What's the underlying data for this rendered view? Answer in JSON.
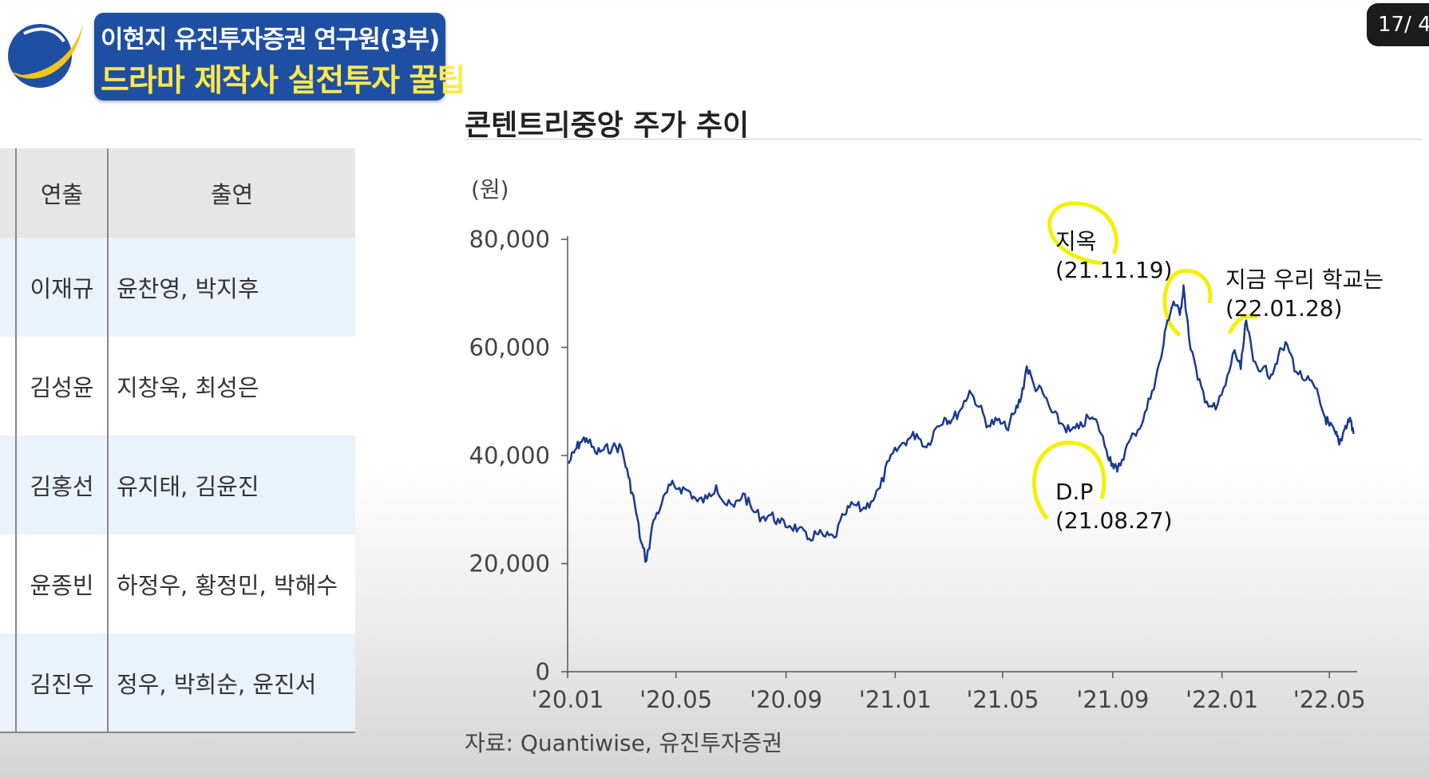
{
  "banner": {
    "line1": "이현지 유진투자증권 연구원(3부)",
    "line2": "드라마 제작사 실전투자 꿀팁",
    "bg_color": "#1f4fa3",
    "line2_color": "#ffe94a"
  },
  "logo": {
    "icon": "globe-swoosh-logo"
  },
  "page_counter": "17/ 4",
  "table": {
    "headers": [
      "",
      "연출",
      "출연"
    ],
    "rows": [
      {
        "director": "이재규",
        "cast": "윤찬영, 박지후"
      },
      {
        "director": "김성윤",
        "cast": "지창욱, 최성은"
      },
      {
        "director": "김홍선",
        "cast": "유지태, 김윤진"
      },
      {
        "director": "윤종빈",
        "cast": "하정우, 황정민, 박해수"
      },
      {
        "director": "김진우",
        "cast": "정우, 박희순, 윤진서"
      }
    ]
  },
  "chart_title": "콘텐트리중앙 주가 추이",
  "source": "자료: Quantiwise, 유진투자증권",
  "chart_data": {
    "type": "line",
    "title": "콘텐트리중앙 주가 추이",
    "ylabel": "(원)",
    "xlabel": "",
    "ylim": [
      0,
      80000
    ],
    "xlim": [
      "2020-01",
      "2022-06"
    ],
    "yticks": [
      0,
      20000,
      40000,
      60000,
      80000
    ],
    "ytick_labels": [
      "0",
      "20,000",
      "40,000",
      "60,000",
      "80,000"
    ],
    "xtick_labels": [
      "'20.01",
      "'20.05",
      "'20.09",
      "'21.01",
      "'21.05",
      "'21.09",
      "'22.01",
      "'22.05"
    ],
    "xticks": [
      "2020-01",
      "2020-05",
      "2020-09",
      "2021-01",
      "2021-05",
      "2021-09",
      "2022-01",
      "2022-05"
    ],
    "line_color": "#1a3a8f",
    "series": [
      {
        "points": [
          [
            "2020-01-02",
            38500
          ],
          [
            "2020-01-08",
            40500
          ],
          [
            "2020-01-15",
            42500
          ],
          [
            "2020-01-22",
            43200
          ],
          [
            "2020-02-01",
            40500
          ],
          [
            "2020-02-10",
            41000
          ],
          [
            "2020-02-20",
            41500
          ],
          [
            "2020-03-01",
            41500
          ],
          [
            "2020-03-09",
            36000
          ],
          [
            "2020-03-16",
            31000
          ],
          [
            "2020-03-23",
            24000
          ],
          [
            "2020-03-29",
            20500
          ],
          [
            "2020-04-06",
            28000
          ],
          [
            "2020-04-15",
            31000
          ],
          [
            "2020-04-25",
            34500
          ],
          [
            "2020-05-05",
            34000
          ],
          [
            "2020-05-15",
            33500
          ],
          [
            "2020-05-25",
            31500
          ],
          [
            "2020-06-05",
            32000
          ],
          [
            "2020-06-15",
            34500
          ],
          [
            "2020-06-25",
            31000
          ],
          [
            "2020-07-05",
            30500
          ],
          [
            "2020-07-15",
            33000
          ],
          [
            "2020-07-25",
            30000
          ],
          [
            "2020-08-05",
            28500
          ],
          [
            "2020-08-15",
            29000
          ],
          [
            "2020-08-25",
            27500
          ],
          [
            "2020-09-05",
            27000
          ],
          [
            "2020-09-15",
            26500
          ],
          [
            "2020-09-25",
            24500
          ],
          [
            "2020-10-05",
            25500
          ],
          [
            "2020-10-15",
            25000
          ],
          [
            "2020-10-25",
            24800
          ],
          [
            "2020-11-05",
            29000
          ],
          [
            "2020-11-15",
            31000
          ],
          [
            "2020-11-25",
            30000
          ],
          [
            "2020-12-05",
            31500
          ],
          [
            "2020-12-15",
            34000
          ],
          [
            "2020-12-25",
            39000
          ],
          [
            "2021-01-05",
            41500
          ],
          [
            "2021-01-15",
            43000
          ],
          [
            "2021-01-25",
            44000
          ],
          [
            "2021-02-05",
            41500
          ],
          [
            "2021-02-15",
            45000
          ],
          [
            "2021-02-25",
            47000
          ],
          [
            "2021-03-05",
            46500
          ],
          [
            "2021-03-15",
            48500
          ],
          [
            "2021-03-25",
            52000
          ],
          [
            "2021-04-05",
            49000
          ],
          [
            "2021-04-15",
            45500
          ],
          [
            "2021-04-25",
            46500
          ],
          [
            "2021-05-05",
            45000
          ],
          [
            "2021-05-15",
            48000
          ],
          [
            "2021-05-22",
            51000
          ],
          [
            "2021-05-28",
            56500
          ],
          [
            "2021-06-05",
            53000
          ],
          [
            "2021-06-15",
            51500
          ],
          [
            "2021-06-25",
            48000
          ],
          [
            "2021-07-05",
            46000
          ],
          [
            "2021-07-15",
            44500
          ],
          [
            "2021-07-25",
            45000
          ],
          [
            "2021-08-05",
            47000
          ],
          [
            "2021-08-15",
            46000
          ],
          [
            "2021-08-25",
            41000
          ],
          [
            "2021-09-01",
            38500
          ],
          [
            "2021-09-06",
            37000
          ],
          [
            "2021-09-15",
            41000
          ],
          [
            "2021-09-25",
            44000
          ],
          [
            "2021-10-05",
            46500
          ],
          [
            "2021-10-15",
            52000
          ],
          [
            "2021-10-25",
            58000
          ],
          [
            "2021-11-01",
            65000
          ],
          [
            "2021-11-08",
            68500
          ],
          [
            "2021-11-15",
            66000
          ],
          [
            "2021-11-19",
            71500
          ],
          [
            "2021-11-25",
            62000
          ],
          [
            "2021-12-05",
            54000
          ],
          [
            "2021-12-15",
            50000
          ],
          [
            "2021-12-25",
            48500
          ],
          [
            "2022-01-05",
            53000
          ],
          [
            "2022-01-15",
            59500
          ],
          [
            "2022-01-22",
            56000
          ],
          [
            "2022-01-28",
            65000
          ],
          [
            "2022-02-05",
            57500
          ],
          [
            "2022-02-15",
            56000
          ],
          [
            "2022-02-25",
            55000
          ],
          [
            "2022-03-05",
            58500
          ],
          [
            "2022-03-15",
            60500
          ],
          [
            "2022-03-25",
            55500
          ],
          [
            "2022-04-05",
            54000
          ],
          [
            "2022-04-15",
            52500
          ],
          [
            "2022-04-25",
            47500
          ],
          [
            "2022-05-01",
            45500
          ],
          [
            "2022-05-08",
            44000
          ],
          [
            "2022-05-12",
            42000
          ],
          [
            "2022-05-19",
            45500
          ],
          [
            "2022-05-24",
            47000
          ],
          [
            "2022-05-28",
            44000
          ]
        ]
      }
    ],
    "annotations": [
      {
        "text": "지옥",
        "sub": "(21.11.19)",
        "date": "2021-11-19"
      },
      {
        "text": "D.P",
        "sub": "(21.08.27)",
        "date": "2021-08-27"
      },
      {
        "text": "지금 우리 학교는",
        "sub": "(22.01.28)",
        "date": "2022-01-28"
      }
    ],
    "highlight_color": "#f2f200"
  }
}
